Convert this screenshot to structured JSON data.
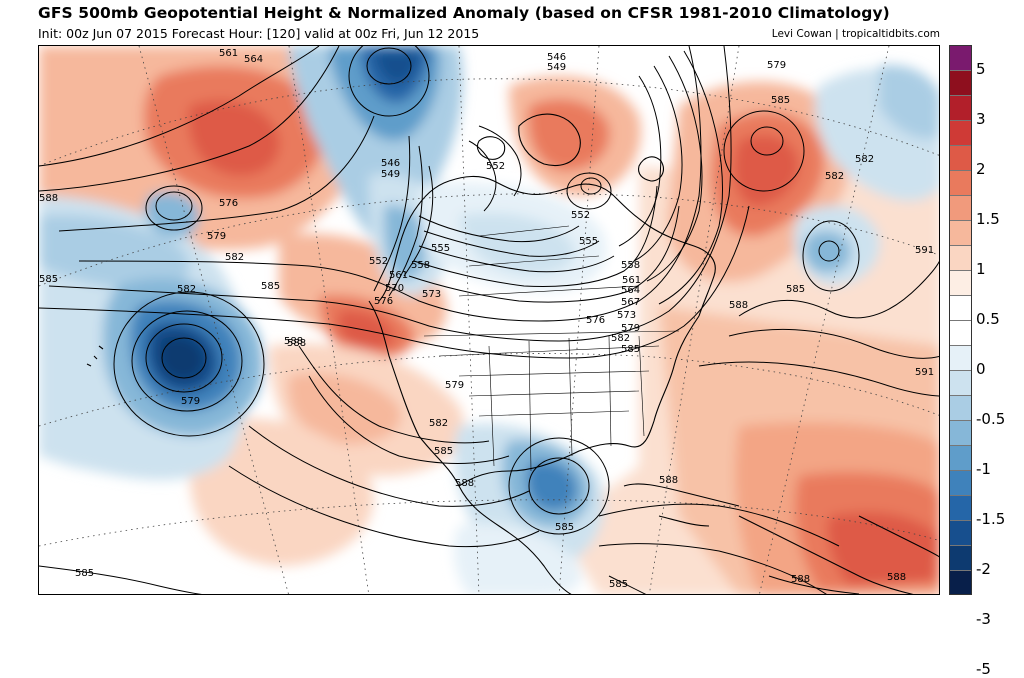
{
  "header": {
    "title": "GFS 500mb Geopotential Height & Normalized Anomaly (based on CFSR 1981-2010 Climatology)",
    "subtitle": "Init: 00z Jun 07 2015   Forecast Hour: [120]   valid at 00z Fri, Jun 12 2015",
    "credit": "Levi Cowan | tropicaltidbits.com"
  },
  "colorbar": {
    "segments": [
      {
        "color": "#7a1a6e"
      },
      {
        "color": "#8e0f1e"
      },
      {
        "color": "#b21f2a"
      },
      {
        "color": "#cf3a36"
      },
      {
        "color": "#de5a47"
      },
      {
        "color": "#e97a5d"
      },
      {
        "color": "#f19a7c"
      },
      {
        "color": "#f6b89c"
      },
      {
        "color": "#fad6c2"
      },
      {
        "color": "#fdeee4"
      },
      {
        "color": "#ffffff"
      },
      {
        "color": "#ffffff"
      },
      {
        "color": "#e6f1f8"
      },
      {
        "color": "#cde2ef"
      },
      {
        "color": "#aacde4"
      },
      {
        "color": "#86b7d8"
      },
      {
        "color": "#5f9dca"
      },
      {
        "color": "#3f82bb"
      },
      {
        "color": "#2566a8"
      },
      {
        "color": "#174f8e"
      },
      {
        "color": "#0d3a70"
      },
      {
        "color": "#081f4a"
      }
    ],
    "labels": [
      "5",
      "3",
      "2",
      "1.5",
      "1",
      "0.5",
      "0",
      "-0.5",
      "-1",
      "-1.5",
      "-2",
      "-3",
      "-5"
    ]
  },
  "map": {
    "contour_labels": [
      "561",
      "564",
      "546",
      "549",
      "579",
      "585",
      "582",
      "582",
      "591",
      "588",
      "576",
      "579",
      "582",
      "585",
      "546",
      "549",
      "552",
      "555",
      "552",
      "555",
      "552",
      "558",
      "561",
      "570",
      "576",
      "573",
      "558",
      "561",
      "564",
      "567",
      "573",
      "576",
      "579",
      "582",
      "585",
      "585",
      "588",
      "582",
      "579",
      "588",
      "579",
      "585",
      "582",
      "585",
      "588",
      "585",
      "588",
      "585",
      "588",
      "585",
      "588",
      "591",
      "588"
    ]
  }
}
